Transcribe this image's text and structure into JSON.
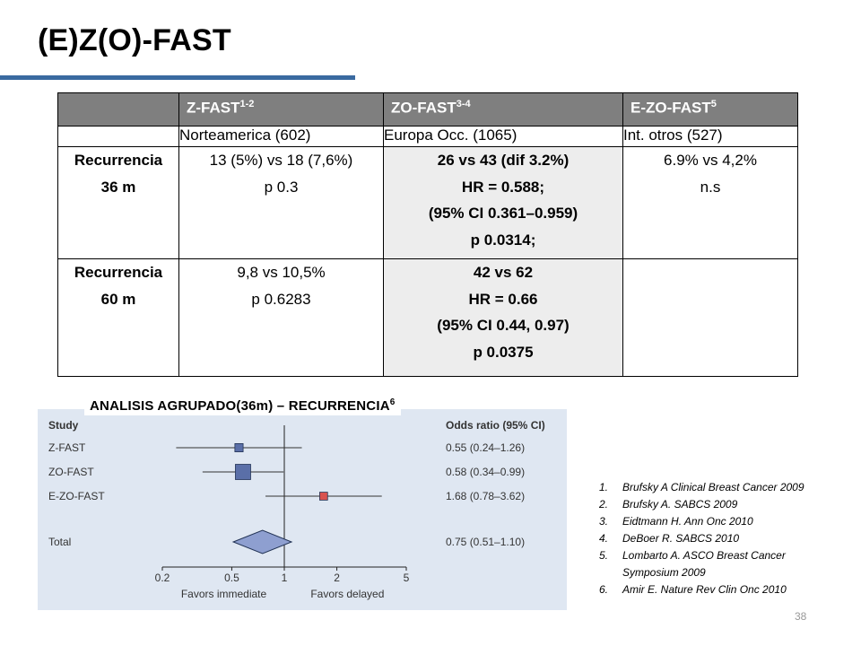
{
  "title": "(E)Z(O)-FAST",
  "table": {
    "headers": [
      {
        "text": "",
        "sup": ""
      },
      {
        "text": "Z-FAST",
        "sup": "1-2"
      },
      {
        "text": "ZO-FAST",
        "sup": "3-4"
      },
      {
        "text": "E-ZO-FAST",
        "sup": "5"
      }
    ],
    "subheaders": [
      "",
      "Norteamerica (602)",
      "Europa Occ. (1065)",
      "Int. otros (527)"
    ],
    "row36": {
      "label": [
        "Recurrencia",
        "36 m"
      ],
      "zfast": [
        "13 (5%) vs 18 (7,6%)",
        "p 0.3"
      ],
      "zofast": [
        "26 vs 43 (dif 3.2%)",
        "HR = 0.588;",
        "(95% CI 0.361–0.959)",
        "p  0.0314;"
      ],
      "ezofast": [
        "6.9% vs 4,2%",
        "n.s"
      ]
    },
    "row60": {
      "label": [
        "Recurrencia",
        "60 m"
      ],
      "zfast": [
        "9,8 vs 10,5%",
        "p  0.6283"
      ],
      "zofast": [
        "42 vs 62",
        "HR = 0.66",
        "(95% CI 0.44, 0.97)",
        "p 0.0375"
      ],
      "ezofast": []
    }
  },
  "forest_label": {
    "text": "ANALISIS AGRUPADO(36m) – RECURRENCIA",
    "sup": "6"
  },
  "chart_data": {
    "type": "forest",
    "x_scale": "log",
    "xlim": [
      0.2,
      5
    ],
    "ticks": [
      0.2,
      0.5,
      1,
      2,
      5
    ],
    "tick_labels": [
      "0.2",
      "0.5",
      "1",
      "2",
      "5"
    ],
    "reference_line": 1,
    "header_study": "Study",
    "header_or": "Odds ratio (95% CI)",
    "xlabel_left": "Favors immediate",
    "xlabel_right": "Favors delayed",
    "studies": [
      {
        "name": "Z-FAST",
        "or": 0.55,
        "lo": 0.24,
        "hi": 1.26,
        "label": "0.55 (0.24–1.26)",
        "weight": 0.35,
        "color": "#5a6fa8"
      },
      {
        "name": "ZO-FAST",
        "or": 0.58,
        "lo": 0.34,
        "hi": 0.99,
        "label": "0.58 (0.34–0.99)",
        "weight": 1.0,
        "color": "#5a6fa8"
      },
      {
        "name": "E-ZO-FAST",
        "or": 1.68,
        "lo": 0.78,
        "hi": 3.62,
        "label": "1.68 (0.78–3.62)",
        "weight": 0.32,
        "color": "#d9534f"
      }
    ],
    "total": {
      "name": "Total",
      "or": 0.75,
      "lo": 0.51,
      "hi": 1.1,
      "label": "0.75 (0.51–1.10)"
    }
  },
  "references": [
    {
      "num": "1.",
      "text": "Brufsky A Clinical Breast Cancer 2009"
    },
    {
      "num": "2.",
      "text": "Brufsky A. SABCS 2009"
    },
    {
      "num": "3.",
      "text": "Eidtmann H. Ann Onc 2010"
    },
    {
      "num": "4.",
      "text": "DeBoer R. SABCS 2010"
    },
    {
      "num": "5.",
      "text": "Lombarto A. ASCO Breast Cancer Symposium 2009"
    },
    {
      "num": "6.",
      "text": "Amir E. Nature Rev Clin Onc 2010"
    }
  ],
  "page_number": "38"
}
